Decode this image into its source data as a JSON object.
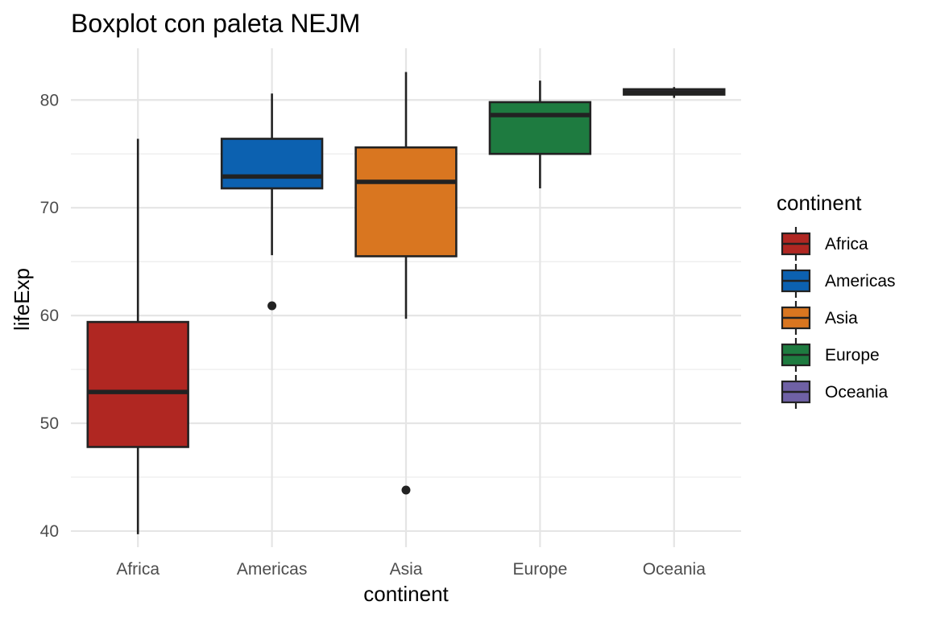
{
  "chart_data": {
    "type": "boxplot",
    "title": "Boxplot con paleta NEJM",
    "xlabel": "continent",
    "ylabel": "lifeExp",
    "categories": [
      "Africa",
      "Americas",
      "Asia",
      "Europe",
      "Oceania"
    ],
    "ylim": [
      38.5,
      84.8
    ],
    "yticks": [
      40,
      50,
      60,
      70,
      80
    ],
    "grid": true,
    "legend": {
      "title": "continent",
      "position": "right",
      "entries": [
        "Africa",
        "Americas",
        "Asia",
        "Europe",
        "Oceania"
      ]
    },
    "series": [
      {
        "category": "Africa",
        "color": "#B02722",
        "whisker_low": 39.7,
        "q1": 47.8,
        "median": 52.9,
        "q3": 59.4,
        "whisker_high": 76.4,
        "outliers": []
      },
      {
        "category": "Americas",
        "color": "#0C61B0",
        "whisker_low": 65.6,
        "q1": 71.8,
        "median": 72.9,
        "q3": 76.4,
        "whisker_high": 80.6,
        "outliers": [
          60.9
        ]
      },
      {
        "category": "Asia",
        "color": "#D97620",
        "whisker_low": 59.7,
        "q1": 65.5,
        "median": 72.4,
        "q3": 75.6,
        "whisker_high": 82.6,
        "outliers": [
          43.8
        ]
      },
      {
        "category": "Europe",
        "color": "#1E7B40",
        "whisker_low": 71.8,
        "q1": 75.0,
        "median": 78.6,
        "q3": 79.8,
        "whisker_high": 81.8,
        "outliers": []
      },
      {
        "category": "Oceania",
        "color": "#6F61A5",
        "whisker_low": 80.2,
        "q1": 80.5,
        "median": 80.7,
        "q3": 81.0,
        "whisker_high": 81.2,
        "outliers": []
      }
    ]
  }
}
